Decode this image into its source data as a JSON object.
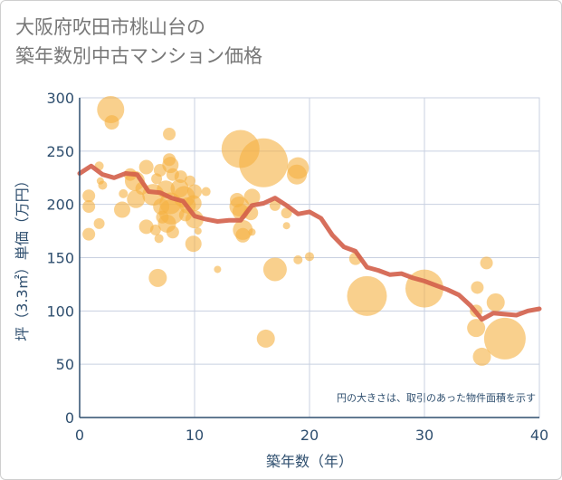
{
  "chart_data": {
    "type": "scatter",
    "title_lines": [
      "大阪府吹田市桃山台の",
      "築年数別中古マンション価格"
    ],
    "xlabel": "築年数（年）",
    "ylabel": "坪（3.3㎡）単価（万円）",
    "xlim": [
      0,
      40
    ],
    "ylim": [
      0,
      300
    ],
    "x_ticks": [
      "0",
      "10",
      "20",
      "30",
      "40"
    ],
    "y_ticks": [
      "0",
      "50",
      "100",
      "150",
      "200",
      "250",
      "300"
    ],
    "grid": true,
    "annotation": "円の大きさは、取引のあった物件面積を示す",
    "colors": {
      "bubble": "#f5b041",
      "line": "#d35f4a",
      "grid": "#c8d0e0",
      "axis": "#2f4f6f"
    },
    "bubbles": [
      {
        "x": 2.7,
        "y": 289,
        "r": 15
      },
      {
        "x": 2.8,
        "y": 277,
        "r": 8
      },
      {
        "x": 7.8,
        "y": 266,
        "r": 7
      },
      {
        "x": 1.7,
        "y": 236,
        "r": 5
      },
      {
        "x": 1.8,
        "y": 222,
        "r": 4
      },
      {
        "x": 2.0,
        "y": 218,
        "r": 5
      },
      {
        "x": 0.8,
        "y": 208,
        "r": 7
      },
      {
        "x": 0.8,
        "y": 198,
        "r": 7
      },
      {
        "x": 1.7,
        "y": 182,
        "r": 6
      },
      {
        "x": 0.8,
        "y": 172,
        "r": 7
      },
      {
        "x": 3.7,
        "y": 195,
        "r": 9
      },
      {
        "x": 3.8,
        "y": 210,
        "r": 5
      },
      {
        "x": 4.4,
        "y": 228,
        "r": 7
      },
      {
        "x": 4.8,
        "y": 222,
        "r": 11
      },
      {
        "x": 5.4,
        "y": 215,
        "r": 7
      },
      {
        "x": 4.9,
        "y": 205,
        "r": 10
      },
      {
        "x": 5.8,
        "y": 235,
        "r": 8
      },
      {
        "x": 6.4,
        "y": 209,
        "r": 12
      },
      {
        "x": 6.7,
        "y": 224,
        "r": 6
      },
      {
        "x": 7.0,
        "y": 232,
        "r": 7
      },
      {
        "x": 7.1,
        "y": 198,
        "r": 9
      },
      {
        "x": 7.2,
        "y": 188,
        "r": 7
      },
      {
        "x": 6.6,
        "y": 176,
        "r": 6
      },
      {
        "x": 5.8,
        "y": 179,
        "r": 8
      },
      {
        "x": 6.9,
        "y": 168,
        "r": 5
      },
      {
        "x": 7.5,
        "y": 214,
        "r": 10
      },
      {
        "x": 7.8,
        "y": 242,
        "r": 7
      },
      {
        "x": 7.9,
        "y": 237,
        "r": 9
      },
      {
        "x": 8.1,
        "y": 228,
        "r": 7
      },
      {
        "x": 7.9,
        "y": 201,
        "r": 12
      },
      {
        "x": 8.0,
        "y": 193,
        "r": 14
      },
      {
        "x": 7.6,
        "y": 182,
        "r": 10
      },
      {
        "x": 8.1,
        "y": 174,
        "r": 7
      },
      {
        "x": 8.8,
        "y": 226,
        "r": 7
      },
      {
        "x": 8.7,
        "y": 215,
        "r": 10
      },
      {
        "x": 9.1,
        "y": 207,
        "r": 12
      },
      {
        "x": 9.4,
        "y": 199,
        "r": 9
      },
      {
        "x": 9.2,
        "y": 190,
        "r": 7
      },
      {
        "x": 9.6,
        "y": 222,
        "r": 6
      },
      {
        "x": 10.0,
        "y": 212,
        "r": 8
      },
      {
        "x": 9.9,
        "y": 201,
        "r": 9
      },
      {
        "x": 10.0,
        "y": 186,
        "r": 10
      },
      {
        "x": 9.9,
        "y": 163,
        "r": 9
      },
      {
        "x": 10.3,
        "y": 175,
        "r": 4
      },
      {
        "x": 11.0,
        "y": 212,
        "r": 5
      },
      {
        "x": 6.8,
        "y": 131,
        "r": 10
      },
      {
        "x": 12.0,
        "y": 139,
        "r": 4
      },
      {
        "x": 13.7,
        "y": 204,
        "r": 8
      },
      {
        "x": 14.0,
        "y": 252,
        "r": 21
      },
      {
        "x": 13.9,
        "y": 198,
        "r": 11
      },
      {
        "x": 14.0,
        "y": 193,
        "r": 9
      },
      {
        "x": 14.2,
        "y": 176,
        "r": 11
      },
      {
        "x": 14.2,
        "y": 171,
        "r": 8
      },
      {
        "x": 14.9,
        "y": 192,
        "r": 8
      },
      {
        "x": 15.0,
        "y": 174,
        "r": 4
      },
      {
        "x": 15.0,
        "y": 207,
        "r": 9
      },
      {
        "x": 16.0,
        "y": 239,
        "r": 27
      },
      {
        "x": 16.2,
        "y": 74,
        "r": 10
      },
      {
        "x": 17.0,
        "y": 139,
        "r": 13
      },
      {
        "x": 17.0,
        "y": 199,
        "r": 6
      },
      {
        "x": 19.0,
        "y": 234,
        "r": 12
      },
      {
        "x": 18.9,
        "y": 228,
        "r": 11
      },
      {
        "x": 18.0,
        "y": 192,
        "r": 6
      },
      {
        "x": 18.0,
        "y": 180,
        "r": 4
      },
      {
        "x": 19.0,
        "y": 148,
        "r": 5
      },
      {
        "x": 20.0,
        "y": 151,
        "r": 5
      },
      {
        "x": 24.0,
        "y": 149,
        "r": 7
      },
      {
        "x": 25.0,
        "y": 114,
        "r": 22
      },
      {
        "x": 30.0,
        "y": 121,
        "r": 21
      },
      {
        "x": 34.6,
        "y": 122,
        "r": 7
      },
      {
        "x": 34.5,
        "y": 100,
        "r": 7
      },
      {
        "x": 34.5,
        "y": 84,
        "r": 10
      },
      {
        "x": 35.0,
        "y": 57,
        "r": 10
      },
      {
        "x": 35.4,
        "y": 145,
        "r": 7
      },
      {
        "x": 36.2,
        "y": 108,
        "r": 10
      },
      {
        "x": 37.0,
        "y": 74,
        "r": 23
      }
    ],
    "trend": {
      "x": [
        0,
        1,
        2,
        3,
        4,
        5,
        6,
        7,
        8,
        9,
        10,
        11,
        12,
        13,
        14,
        15,
        16,
        17,
        18,
        19,
        20,
        21,
        22,
        23,
        24,
        25,
        26,
        27,
        28,
        29,
        30,
        31,
        32,
        33,
        34,
        35,
        36,
        37,
        38,
        39,
        40
      ],
      "y": [
        229,
        236,
        228,
        225,
        229,
        228,
        212,
        211,
        206,
        203,
        189,
        186,
        184,
        185,
        185,
        199,
        201,
        206,
        199,
        191,
        193,
        187,
        171,
        160,
        156,
        141,
        138,
        134,
        135,
        131,
        128,
        124,
        120,
        115,
        105,
        92,
        98,
        97,
        96,
        100,
        102
      ]
    }
  }
}
